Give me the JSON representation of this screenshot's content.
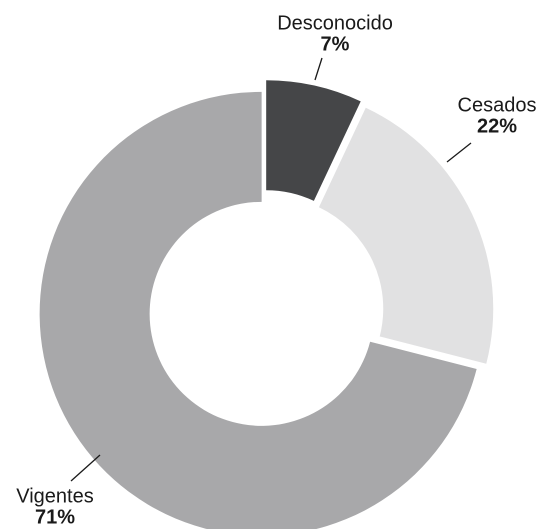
{
  "chart_data": {
    "type": "donut",
    "categories": [
      "Desconocido",
      "Cesados",
      "Vigentes"
    ],
    "values": [
      7,
      22,
      71
    ],
    "value_labels": [
      "7%",
      "22%",
      "71%"
    ],
    "colors": [
      "#454648",
      "#e1e1e2",
      "#a8a8aa"
    ]
  }
}
